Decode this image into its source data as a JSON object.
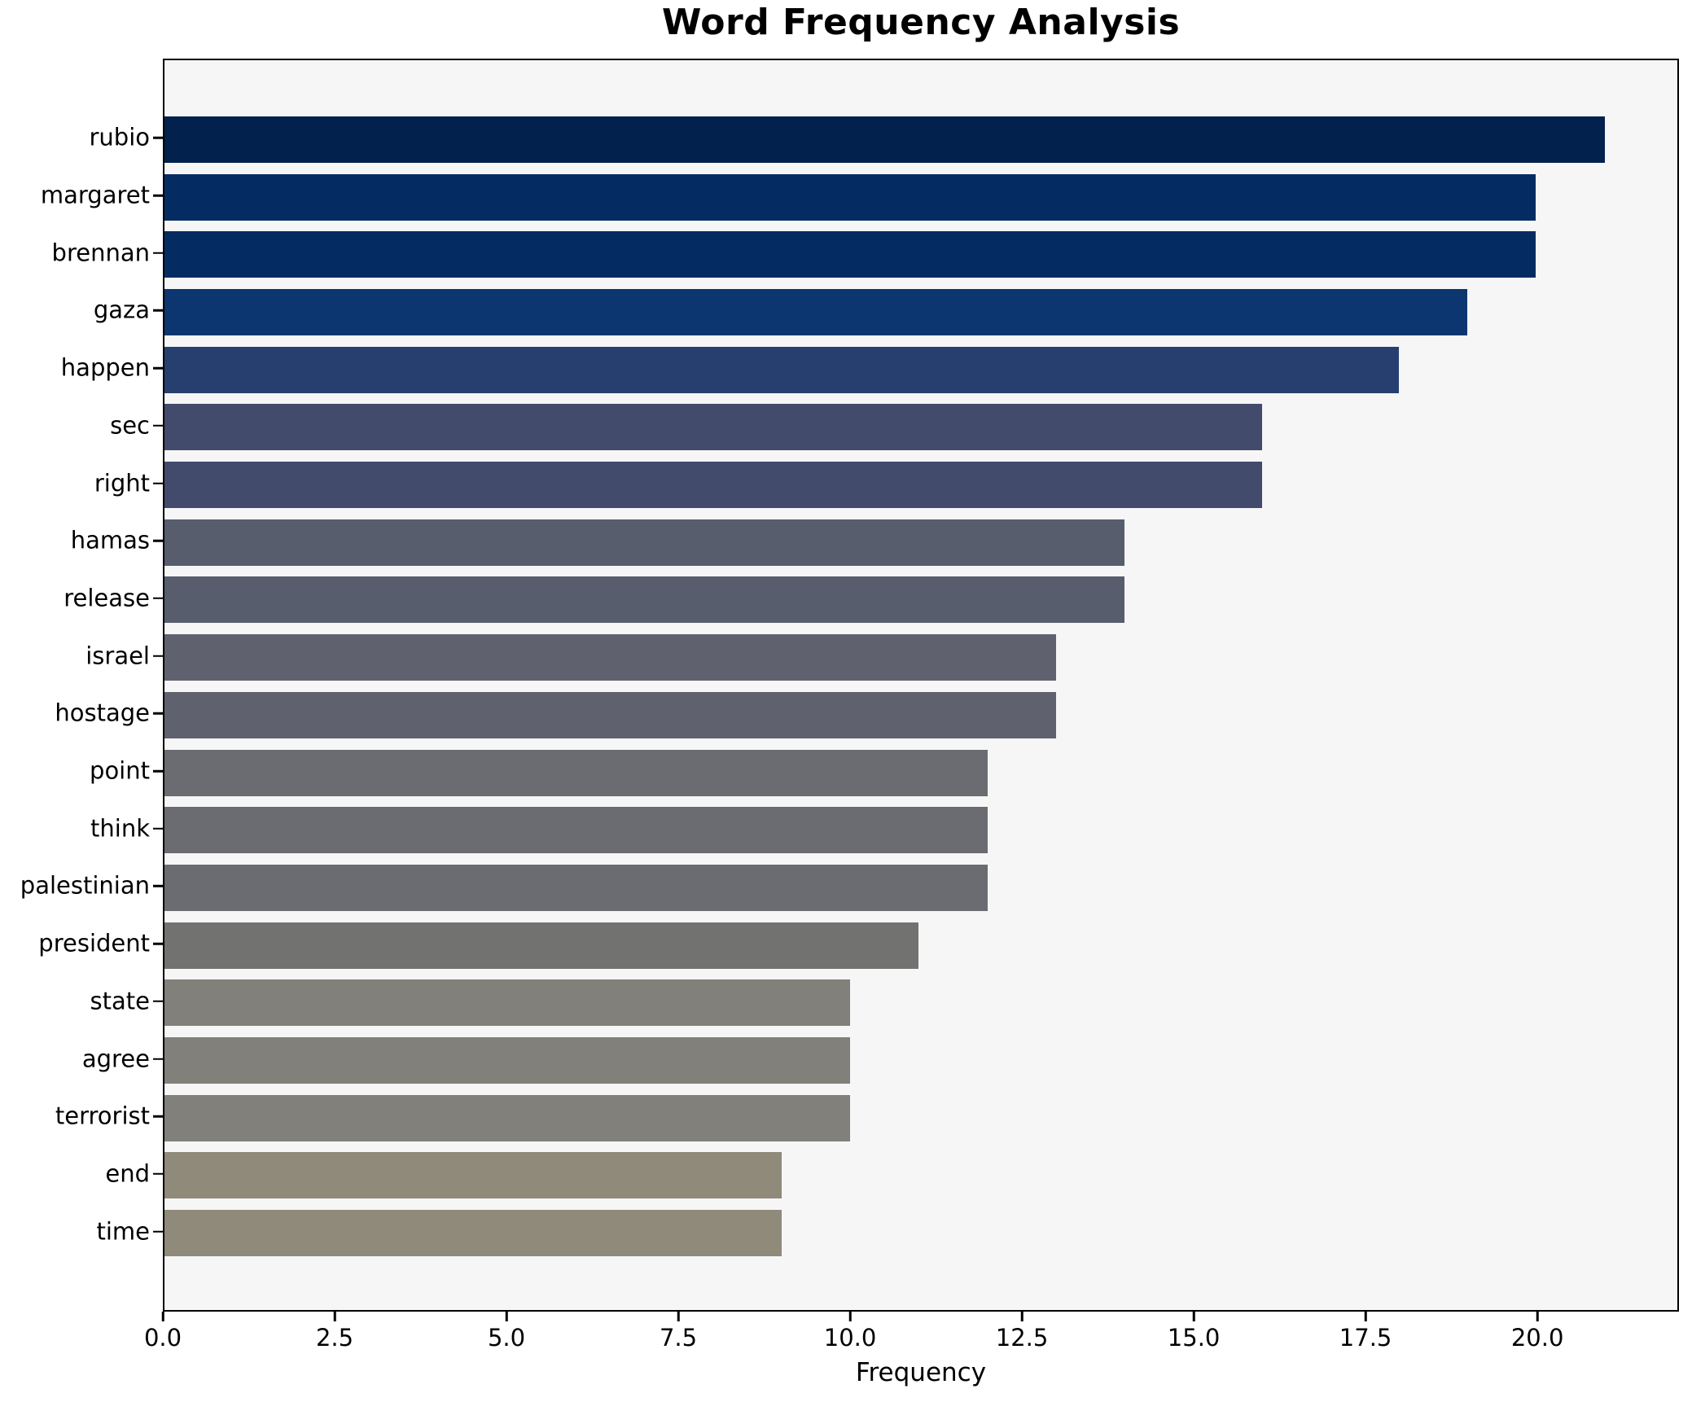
{
  "title": "Word Frequency Analysis",
  "chart_data": {
    "type": "bar",
    "orientation": "horizontal",
    "title": "Word Frequency Analysis",
    "xlabel": "Frequency",
    "ylabel": "",
    "categories": [
      "rubio",
      "margaret",
      "brennan",
      "gaza",
      "happen",
      "sec",
      "right",
      "hamas",
      "release",
      "israel",
      "hostage",
      "point",
      "think",
      "palestinian",
      "president",
      "state",
      "agree",
      "terrorist",
      "end",
      "time"
    ],
    "values": [
      21,
      20,
      20,
      19,
      18,
      16,
      16,
      14,
      14,
      13,
      13,
      12,
      12,
      12,
      11,
      10,
      10,
      10,
      9,
      9
    ],
    "bar_colors": [
      "#02214d",
      "#042c62",
      "#042c62",
      "#0b366f",
      "#273f6e",
      "#424b6b",
      "#424b6b",
      "#575d6d",
      "#575d6d",
      "#5f626e",
      "#5f626e",
      "#6b6c71",
      "#6b6c71",
      "#6b6c71",
      "#727370",
      "#82807a",
      "#82807a",
      "#82807a",
      "#8f8a79",
      "#8f8a79"
    ],
    "x_ticks": [
      0.0,
      2.5,
      5.0,
      7.5,
      10.0,
      12.5,
      15.0,
      17.5,
      20.0
    ],
    "x_tick_labels": [
      "0.0",
      "2.5",
      "5.0",
      "7.5",
      "10.0",
      "12.5",
      "15.0",
      "17.5",
      "20.0"
    ],
    "xlim": [
      0,
      22.06
    ],
    "grid": false,
    "legend": null,
    "plot_background": "#f6f6f7",
    "figure_background": "#ffffff",
    "spine_color": "#000000"
  }
}
